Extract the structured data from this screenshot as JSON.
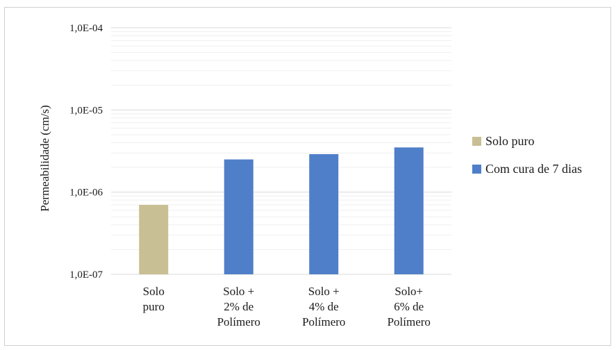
{
  "chart_data": {
    "type": "bar",
    "title": "",
    "ylabel": "Permeabilidade (cm/s)",
    "xlabel": "",
    "yscale": "log",
    "ylim": [
      1e-07,
      0.0001
    ],
    "y_ticks": [
      "1,0E-04",
      "1,0E-05",
      "1,0E-06",
      "1,0E-07"
    ],
    "y_tick_values": [
      0.0001,
      1e-05,
      1e-06,
      1e-07
    ],
    "grid": true,
    "legend_position": "right",
    "categories": [
      [
        "Solo",
        "puro"
      ],
      [
        "Solo +",
        "2% de",
        "Polímero"
      ],
      [
        "Solo +",
        "4% de",
        "Polímero"
      ],
      [
        "Solo+",
        "6% de",
        "Polímero"
      ]
    ],
    "series": [
      {
        "name": "Solo puro",
        "color": "#c9bf94",
        "values": [
          7e-07,
          null,
          null,
          null
        ]
      },
      {
        "name": "Com cura de 7 dias",
        "color": "#4f7fc8",
        "values": [
          null,
          2.5e-06,
          2.9e-06,
          3.5e-06
        ]
      }
    ]
  }
}
